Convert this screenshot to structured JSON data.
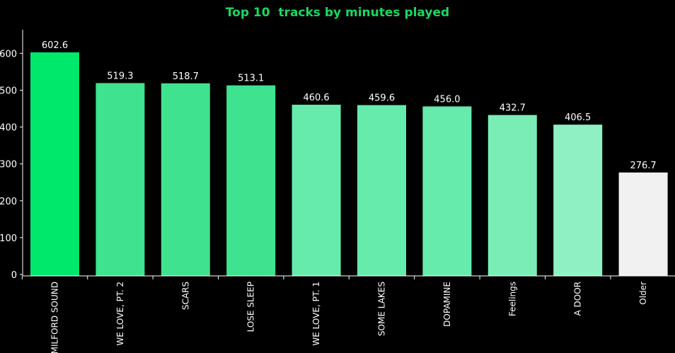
{
  "chart_data": {
    "type": "bar",
    "title": "Top 10  tracks by minutes played",
    "title_color": "#1ed760",
    "xlabel": "",
    "ylabel": "",
    "ylim": [
      0,
      660
    ],
    "yticks": [
      0,
      100,
      200,
      300,
      400,
      500,
      600
    ],
    "grid": false,
    "legend": "none",
    "categories": [
      "MILFORD SOUND",
      "WE LOVE, PT. 2",
      "SCARS",
      "LOSE SLEEP",
      "WE LOVE, PT. 1",
      "SOME LAKES",
      "DOPAMINE",
      "Feelings",
      "A DOOR",
      "Older"
    ],
    "values": [
      602.6,
      519.3,
      518.7,
      513.1,
      460.6,
      459.6,
      456.0,
      432.7,
      406.5,
      276.7
    ],
    "value_labels": [
      "602.6",
      "519.3",
      "518.7",
      "513.1",
      "460.6",
      "459.6",
      "456.0",
      "432.7",
      "406.5",
      "276.7"
    ],
    "bar_colors": [
      "#00e86b",
      "#3ee28f",
      "#3ee28f",
      "#3ee28f",
      "#66ebac",
      "#66ebac",
      "#66ebac",
      "#7aedb6",
      "#8ff1c3",
      "#f1f1f1"
    ],
    "axis_color": "#ffffff",
    "background": "#000000"
  }
}
